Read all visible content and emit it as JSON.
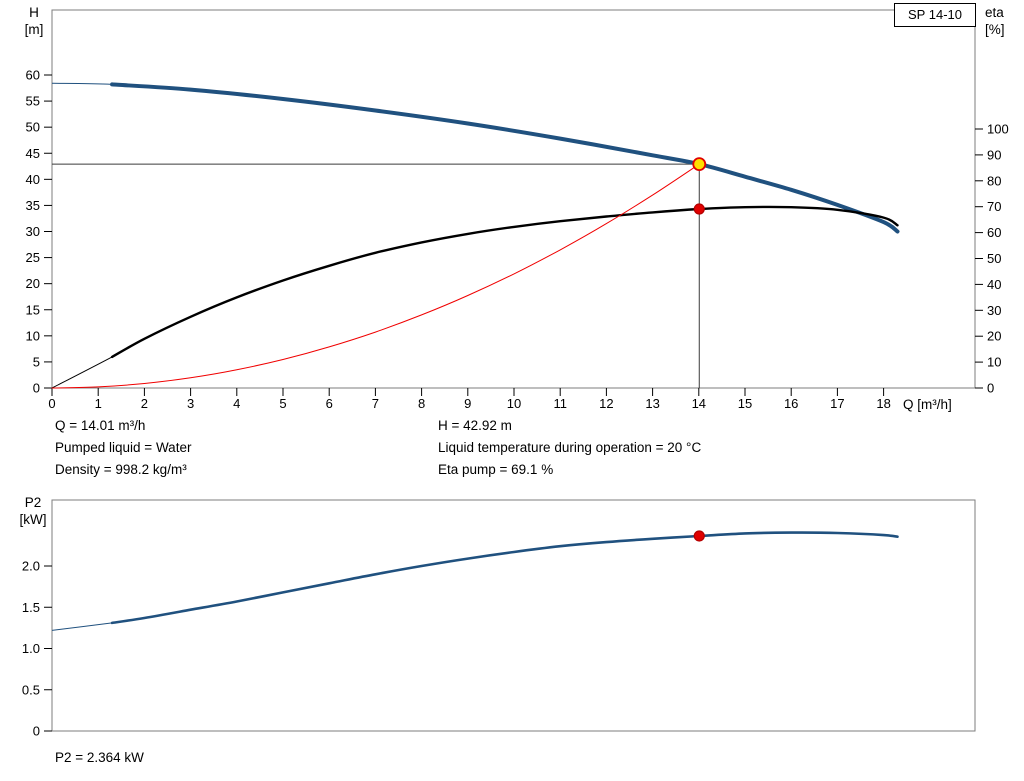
{
  "pump_box": {
    "label": "SP 14-10"
  },
  "labels": {
    "h_axis": [
      "H",
      "[m]"
    ],
    "eta_axis": [
      "eta",
      "[%]"
    ],
    "x_axis": "Q [m³/h]",
    "p2_axis": [
      "P2",
      "[kW]"
    ]
  },
  "info": {
    "q": "Q = 14.01 m³/h",
    "h": "H = 42.92 m",
    "pumped_liquid": "Pumped liquid = Water",
    "temperature": "Liquid temperature during operation = 20 °C",
    "density": "Density = 998.2 kg/m³",
    "eta_pump": "Eta pump = 69.1 %",
    "p2": "P2 = 2.364 kW"
  },
  "chart_data": [
    {
      "type": "line",
      "title": "SP 14-10 pump performance: head and efficiency vs flow",
      "xlabel": "Q [m³/h]",
      "ylabel_left": "H [m]",
      "ylabel_right": "eta [%]",
      "xlim": [
        0,
        20
      ],
      "ylim_left": [
        0,
        72.5
      ],
      "ylim_right": [
        0,
        146
      ],
      "x_ticks": [
        0,
        1,
        2,
        3,
        4,
        5,
        6,
        7,
        8,
        9,
        10,
        11,
        12,
        13,
        14,
        15,
        16,
        17,
        18
      ],
      "y_left_ticks": [
        0,
        5,
        10,
        15,
        20,
        25,
        30,
        35,
        40,
        45,
        50,
        55,
        60
      ],
      "y_right_ticks": [
        0,
        10,
        20,
        30,
        40,
        50,
        60,
        70,
        80,
        90,
        100
      ],
      "series": [
        {
          "name": "head-curve",
          "axis": "left",
          "color": "#20517f",
          "width": 4,
          "lead_points": 1,
          "x": [
            0,
            1.3,
            3,
            5,
            7,
            9,
            11,
            13,
            14.01,
            15,
            16,
            17,
            18,
            18.3
          ],
          "y": [
            58.4,
            58.2,
            57.2,
            55.4,
            53.2,
            50.7,
            47.8,
            44.6,
            42.92,
            40.5,
            38.0,
            35.1,
            31.8,
            30.0
          ]
        },
        {
          "name": "eta-curve",
          "axis": "right",
          "color": "#000000",
          "width": 2.4,
          "lead_points": 1,
          "x": [
            0,
            1.3,
            2,
            3,
            4,
            5,
            6,
            7,
            8,
            9,
            10,
            11,
            12,
            13,
            14.01,
            15,
            16,
            17,
            18,
            18.3
          ],
          "y": [
            0,
            12,
            19,
            27.5,
            35,
            41.5,
            47.2,
            52.2,
            56.2,
            59.5,
            62.2,
            64.4,
            66.2,
            67.8,
            69.1,
            69.8,
            69.8,
            68.8,
            65.8,
            62.8
          ]
        },
        {
          "name": "system-curve",
          "axis": "left",
          "color": "#f00000",
          "width": 1,
          "lead_points": 0,
          "x": [
            0,
            1,
            2,
            3,
            4,
            5,
            6,
            7,
            8,
            9,
            10,
            11,
            12,
            13,
            14.01
          ],
          "y": [
            0,
            0.22,
            0.87,
            1.97,
            3.5,
            5.47,
            7.88,
            10.72,
            14.01,
            17.73,
            21.88,
            26.48,
            31.51,
            36.98,
            42.92
          ]
        }
      ],
      "duty_points": [
        {
          "name": "duty-point-head",
          "axis": "left",
          "x": 14.01,
          "y": 42.92,
          "r": 6,
          "fill": "#ffe000",
          "stroke": "#e00000"
        },
        {
          "name": "duty-point-eta",
          "axis": "right",
          "x": 14.01,
          "y": 69.1,
          "r": 5,
          "fill": "#e00000",
          "stroke": "#b40000"
        }
      ],
      "crosshair": {
        "x": 14.01,
        "y": 42.92
      }
    },
    {
      "type": "line",
      "title": "Shaft power P2 vs flow",
      "xlabel": "",
      "ylabel": "P2 [kW]",
      "xlim": [
        0,
        20
      ],
      "ylim": [
        0,
        2.8
      ],
      "y_ticks": [
        0,
        0.5,
        1,
        1.5,
        2
      ],
      "y_tick_labels": [
        "0",
        "0.5",
        "1.0",
        "1.5",
        "2.0"
      ],
      "series": [
        {
          "name": "p2-curve",
          "color": "#20517f",
          "width": 2.6,
          "lead_points": 1,
          "x": [
            0,
            1.3,
            2,
            3,
            4,
            5,
            6,
            7,
            8,
            9,
            10,
            11,
            12,
            13,
            14.01,
            15,
            16,
            17,
            18,
            18.3
          ],
          "y": [
            1.22,
            1.31,
            1.37,
            1.47,
            1.57,
            1.68,
            1.79,
            1.9,
            2.0,
            2.09,
            2.17,
            2.24,
            2.29,
            2.33,
            2.364,
            2.395,
            2.405,
            2.4,
            2.375,
            2.355
          ]
        }
      ],
      "duty_points": [
        {
          "name": "duty-point-p2",
          "x": 14.01,
          "y": 2.364,
          "r": 5,
          "fill": "#e00000",
          "stroke": "#b40000"
        }
      ]
    }
  ]
}
